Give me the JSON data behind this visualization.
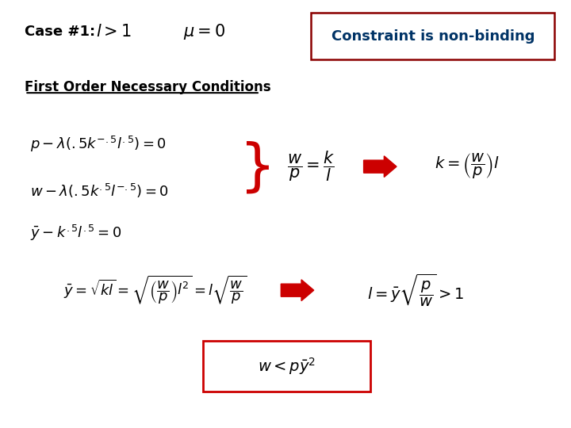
{
  "bg_color": "#ffffff",
  "title_case": "Case #1:",
  "case_math1": "$l > 1$",
  "case_math2": "$\\mu = 0$",
  "constraint_label": "Constraint is non-binding",
  "constraint_box_color": "#8B0000",
  "constraint_text_color": "#003366",
  "fonc_label": "First Order Necessary Conditions",
  "eq1": "$p - \\lambda\\left(.5k^{-.5}l^{.5}\\right) = 0$",
  "eq2": "$w - \\lambda\\left(.5k^{.5}l^{-.5}\\right) = 0$",
  "eq3": "$\\bar{y} - k^{.5}l^{.5} = 0$",
  "ratio": "$\\dfrac{w}{p} = \\dfrac{k}{l}$",
  "result1": "$k = \\left(\\dfrac{w}{p}\\right)l$",
  "eq4": "$\\bar{y} = \\sqrt{kl} = \\sqrt{\\left(\\dfrac{w}{p}\\right)l^2} = l\\sqrt{\\dfrac{w}{p}}$",
  "result2": "$l = \\bar{y}\\sqrt{\\dfrac{p}{w}} > 1$",
  "boxed": "$w < p\\bar{y}^{2}$",
  "arrow_color": "#cc0000"
}
